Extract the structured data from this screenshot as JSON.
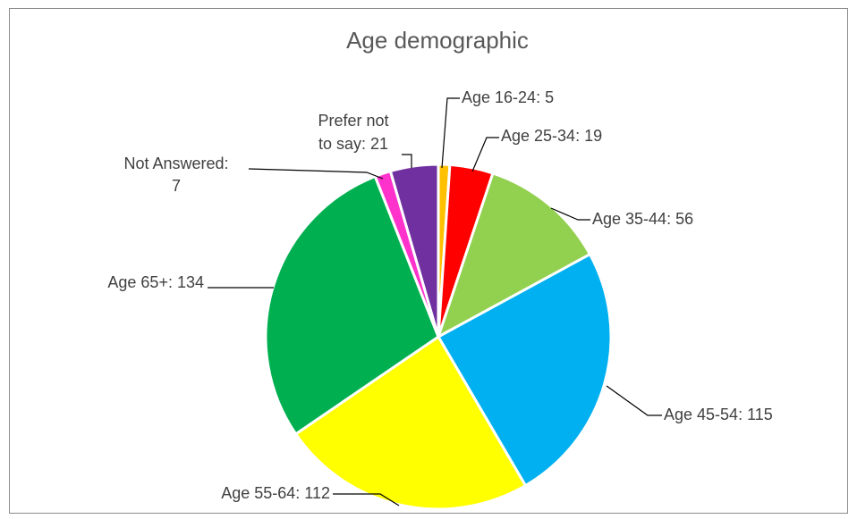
{
  "chart_data": {
    "type": "pie",
    "title": "Age demographic",
    "legend": "none",
    "slices": [
      {
        "category": "Age 16-24",
        "value": 5,
        "color": "#FFC000",
        "label": [
          "Age 16-24: 5"
        ]
      },
      {
        "category": "Age 25-34",
        "value": 19,
        "color": "#FF0000",
        "label": [
          "Age 25-34: 19"
        ]
      },
      {
        "category": "Age 35-44",
        "value": 56,
        "color": "#92D050",
        "label": [
          "Age 35-44: 56"
        ]
      },
      {
        "category": "Age 45-54",
        "value": 115,
        "color": "#00B0F0",
        "label": [
          "Age 45-54: 115"
        ]
      },
      {
        "category": "Age 55-64",
        "value": 112,
        "color": "#FFFF00",
        "label": [
          "Age 55-64: 112"
        ]
      },
      {
        "category": "Age 65+",
        "value": 134,
        "color": "#00B050",
        "label": [
          "Age 65+: 134"
        ]
      },
      {
        "category": "Not Answered",
        "value": 7,
        "color": "#FF33CC",
        "label": [
          "Not Answered:",
          "7"
        ]
      },
      {
        "category": "Prefer not to say",
        "value": 21,
        "color": "#7030A0",
        "label": [
          "Prefer not",
          "to say: 21"
        ]
      }
    ]
  }
}
